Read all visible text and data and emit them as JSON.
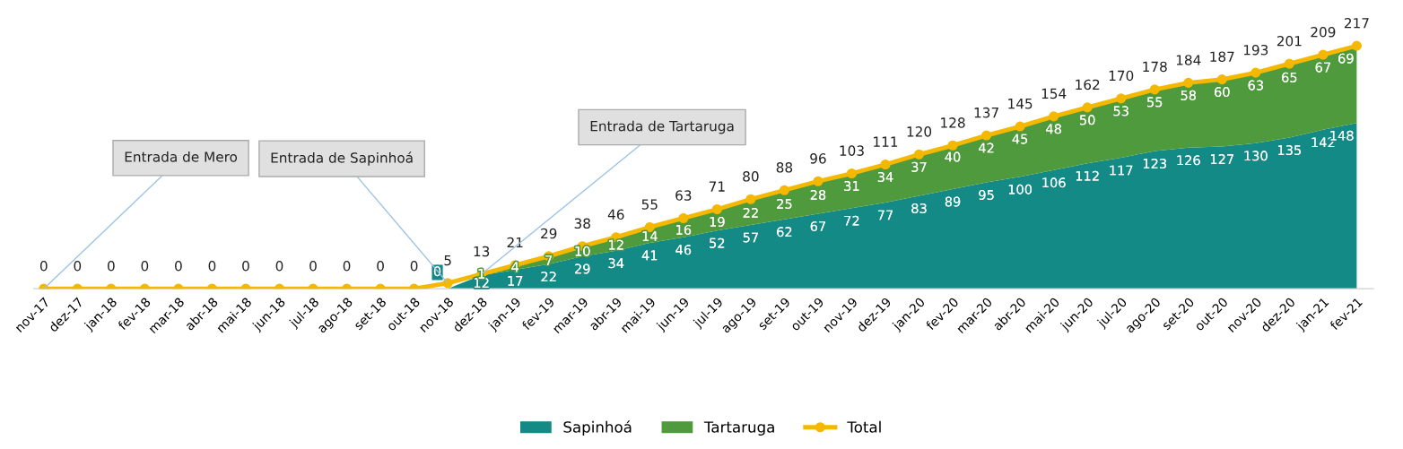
{
  "chart_data": {
    "type": "area",
    "stacked": true,
    "data_labels": true,
    "grid": false,
    "legend": "bottom",
    "tick_labels": "x",
    "categories": [
      "nov-17",
      "dez-17",
      "jan-18",
      "fev-18",
      "mar-18",
      "abr-18",
      "mai-18",
      "jun-18",
      "jul-18",
      "ago-18",
      "set-18",
      "out-18",
      "nov-18",
      "dez-18",
      "jan-19",
      "fev-19",
      "mar-19",
      "abr-19",
      "mai-19",
      "jun-19",
      "jul-19",
      "ago-19",
      "set-19",
      "out-19",
      "nov-19",
      "dez-19",
      "jan-20",
      "fev-20",
      "mar-20",
      "abr-20",
      "mai-20",
      "jun-20",
      "jul-20",
      "ago-20",
      "set-20",
      "out-20",
      "nov-20",
      "dez-20",
      "jan-21",
      "fev-21"
    ],
    "series": [
      {
        "name": "Sapinhoá",
        "color": "#138a86",
        "values": [
          null,
          null,
          null,
          null,
          null,
          null,
          null,
          null,
          null,
          null,
          null,
          null,
          0,
          12,
          17,
          22,
          29,
          34,
          41,
          46,
          52,
          57,
          62,
          67,
          72,
          77,
          83,
          89,
          95,
          100,
          106,
          112,
          117,
          123,
          126,
          127,
          130,
          135,
          142,
          148
        ]
      },
      {
        "name": "Tartaruga",
        "color": "#4e9a3c",
        "values": [
          null,
          null,
          null,
          null,
          null,
          null,
          null,
          null,
          null,
          null,
          null,
          null,
          null,
          1,
          4,
          7,
          10,
          12,
          14,
          16,
          19,
          22,
          25,
          28,
          31,
          34,
          37,
          40,
          42,
          45,
          48,
          50,
          53,
          55,
          58,
          60,
          63,
          65,
          67,
          69
        ]
      },
      {
        "name": "Total",
        "type": "line",
        "marker": "circle",
        "color": "#f5b800",
        "values": [
          0,
          0,
          0,
          0,
          0,
          0,
          0,
          0,
          0,
          0,
          0,
          0,
          5,
          13,
          21,
          29,
          38,
          46,
          55,
          63,
          71,
          80,
          88,
          96,
          103,
          111,
          120,
          128,
          137,
          145,
          154,
          162,
          170,
          178,
          184,
          187,
          193,
          201,
          209,
          217
        ]
      }
    ],
    "annotations": [
      {
        "text": "Entrada de Mero",
        "x": "nov-17",
        "y": 0
      },
      {
        "text": "Entrada de Sapinhoá",
        "x": "nov-18",
        "y": 5
      },
      {
        "text": "Entrada de Tartaruga",
        "x": "dez-18",
        "y": 13
      }
    ]
  }
}
